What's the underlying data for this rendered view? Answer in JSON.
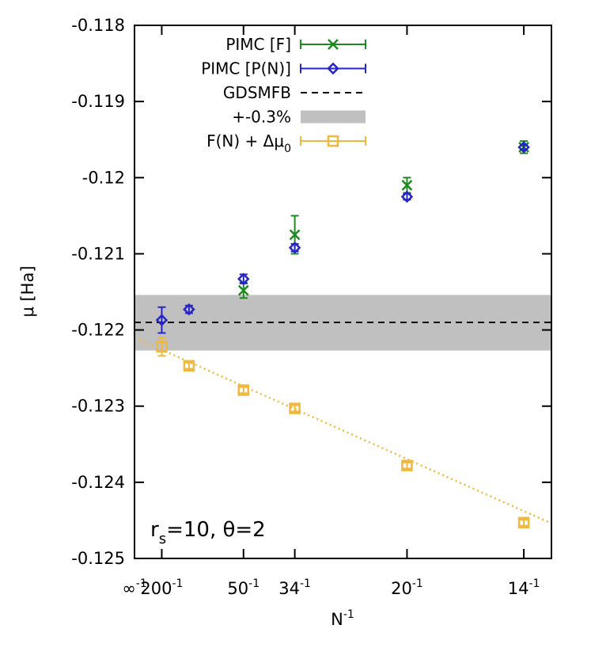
{
  "chart_data": {
    "type": "scatter",
    "xlabel": "N",
    "xlabel_sup": "-1",
    "ylabel": "μ [Ha]",
    "xlim": [
      0,
      0.0765
    ],
    "ylim": [
      -0.125,
      -0.118
    ],
    "y_ticks": [
      {
        "value": -0.118,
        "label": "-0.118"
      },
      {
        "value": -0.119,
        "label": "-0.119"
      },
      {
        "value": -0.12,
        "label": "-0.12"
      },
      {
        "value": -0.121,
        "label": "-0.121"
      },
      {
        "value": -0.122,
        "label": "-0.122"
      },
      {
        "value": -0.123,
        "label": "-0.123"
      },
      {
        "value": -0.124,
        "label": "-0.124"
      },
      {
        "value": -0.125,
        "label": "-0.125"
      }
    ],
    "x_ticks": [
      {
        "value": 0,
        "base": "∞",
        "sup": "-1"
      },
      {
        "value": 0.005,
        "base": "200",
        "sup": "-1"
      },
      {
        "value": 0.02,
        "base": "50",
        "sup": "-1"
      },
      {
        "value": 0.02941,
        "base": "34",
        "sup": "-1"
      },
      {
        "value": 0.05,
        "base": "20",
        "sup": "-1"
      },
      {
        "value": 0.07143,
        "base": "14",
        "sup": "-1"
      }
    ],
    "series": [
      {
        "name": "PIMC [F]",
        "marker": "x",
        "color": "#1f8a1f",
        "points": [
          {
            "x": 0.02,
            "y": -0.12148,
            "err": 0.0001
          },
          {
            "x": 0.02941,
            "y": -0.12075,
            "err": 0.00025
          },
          {
            "x": 0.05,
            "y": -0.1201,
            "err": 0.0001
          },
          {
            "x": 0.07143,
            "y": -0.1196,
            "err": 8e-05
          }
        ]
      },
      {
        "name": "PIMC [P(N)]",
        "marker": "diamond",
        "color": "#2626c8",
        "points": [
          {
            "x": 0.005,
            "y": -0.12187,
            "err": 0.00017
          },
          {
            "x": 0.01,
            "y": -0.12173,
            "err": 5e-05
          },
          {
            "x": 0.02,
            "y": -0.12133,
            "err": 6e-05
          },
          {
            "x": 0.02941,
            "y": -0.12092,
            "err": 5e-05
          },
          {
            "x": 0.05,
            "y": -0.12025,
            "err": 4e-05
          },
          {
            "x": 0.07143,
            "y": -0.1196,
            "err": 3e-05
          }
        ]
      },
      {
        "name": "F(N) + Δμ",
        "name_sub": "0",
        "marker": "square",
        "color": "#f0b83c",
        "points": [
          {
            "x": 0.005,
            "y": -0.12222,
            "err": 0.00012
          },
          {
            "x": 0.01,
            "y": -0.12247,
            "err": 4e-05
          },
          {
            "x": 0.02,
            "y": -0.12279,
            "err": 4e-05
          },
          {
            "x": 0.02941,
            "y": -0.12303,
            "err": 4e-05
          },
          {
            "x": 0.05,
            "y": -0.12378,
            "err": 4e-05
          },
          {
            "x": 0.07143,
            "y": -0.12453,
            "err": 4e-05
          }
        ],
        "fit": {
          "intercept": -0.1221,
          "slope": -0.0319
        }
      }
    ],
    "reference": {
      "name": "GDSMFB",
      "value": -0.1219,
      "band_name": "+-0.3%",
      "band": [
        -0.12227,
        -0.12154
      ]
    },
    "annotation": {
      "r_label": "r",
      "r_sub": "s",
      "rest": "=10, θ=2"
    }
  }
}
